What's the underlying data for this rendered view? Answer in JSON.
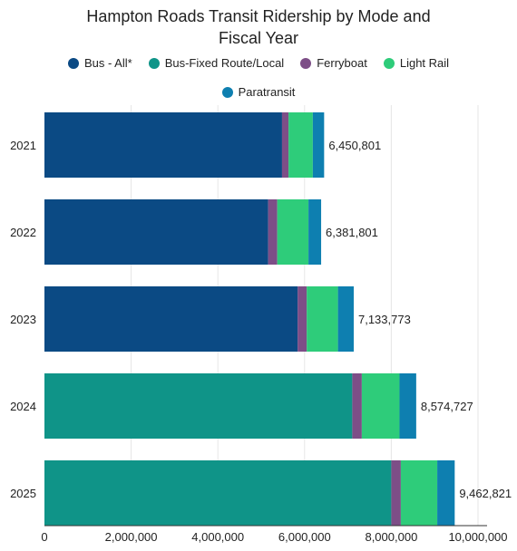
{
  "chart_data": {
    "type": "bar",
    "orientation": "horizontal",
    "stacked": true,
    "title": "Hampton Roads Transit Ridership by Mode and Fiscal Year",
    "title_lines": [
      "Hampton Roads Transit Ridership by Mode and",
      "Fiscal Year"
    ],
    "categories": [
      "2021",
      "2022",
      "2023",
      "2024",
      "2025"
    ],
    "series": [
      {
        "name": "Bus - All*",
        "color": "#0b4a84",
        "values": [
          5480000,
          5160000,
          5840000,
          0,
          0
        ]
      },
      {
        "name": "Bus-Fixed Route/Local",
        "color": "#0f9488",
        "values": [
          0,
          0,
          0,
          7100000,
          8000000
        ]
      },
      {
        "name": "Ferryboat",
        "color": "#7d4e87",
        "values": [
          150000,
          210000,
          210000,
          220000,
          220000
        ]
      },
      {
        "name": "Light Rail",
        "color": "#2ecc7a",
        "values": [
          560000,
          720000,
          720000,
          870000,
          840000
        ]
      },
      {
        "name": "Paratransit",
        "color": "#0e7fb0",
        "values": [
          260801,
          291801,
          363773,
          384727,
          402821
        ]
      }
    ],
    "totals": [
      "6,450,801",
      "6,381,801",
      "7,133,773",
      "8,574,727",
      "9,462,821"
    ],
    "xlim": [
      0,
      10000000
    ],
    "xticks": [
      "0",
      "2,000,000",
      "4,000,000",
      "6,000,000",
      "8,000,000",
      "10,000,000"
    ],
    "xtick_values": [
      0,
      2000000,
      4000000,
      6000000,
      8000000,
      10000000
    ],
    "grid": true,
    "legend_position": "top"
  }
}
